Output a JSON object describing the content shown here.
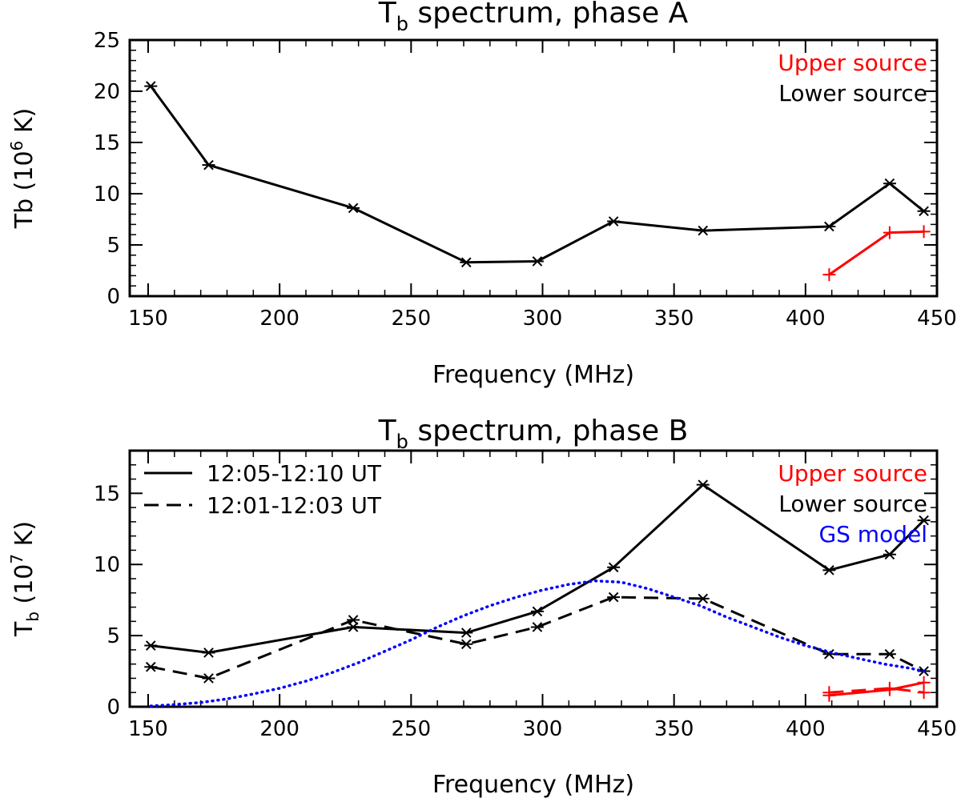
{
  "chart_data": [
    {
      "type": "line",
      "title_main": "T",
      "title_sub": "b",
      "title_rest": " spectrum, phase A",
      "xlabel": "Frequency (MHz)",
      "ylabel_pre": "Tb (10",
      "ylabel_sup": "6",
      "ylabel_post": " K)",
      "xlim": [
        143,
        450
      ],
      "ylim": [
        0,
        25
      ],
      "xticks": [
        150,
        200,
        250,
        300,
        350,
        400,
        450
      ],
      "yticks": [
        0,
        5,
        10,
        15,
        20,
        25
      ],
      "legend": [
        {
          "label": "Upper source",
          "color": "#ff0000"
        },
        {
          "label": "Lower source",
          "color": "#000000"
        }
      ],
      "series": [
        {
          "name": "Lower source",
          "color": "#000000",
          "marker": "asterisk",
          "dash": "solid",
          "x": [
            151,
            173,
            228,
            271,
            298,
            327,
            361,
            409,
            432,
            445
          ],
          "y": [
            20.5,
            12.8,
            8.6,
            3.3,
            3.4,
            7.3,
            6.4,
            6.8,
            11.0,
            8.3
          ]
        },
        {
          "name": "Upper source",
          "color": "#ff0000",
          "marker": "plus",
          "dash": "solid",
          "x": [
            409,
            432,
            445
          ],
          "y": [
            2.1,
            6.2,
            6.3
          ]
        }
      ]
    },
    {
      "type": "line",
      "title_main": "T",
      "title_sub": "b",
      "title_rest": " spectrum, phase B",
      "xlabel": "Frequency (MHz)",
      "ylabel_pre": "T",
      "ylabel_sub": "b",
      "ylabel_mid": " (10",
      "ylabel_sup": "7",
      "ylabel_post": " K)",
      "xlim": [
        143,
        450
      ],
      "ylim": [
        0,
        18
      ],
      "xticks": [
        150,
        200,
        250,
        300,
        350,
        400,
        450
      ],
      "yticks": [
        0,
        5,
        10,
        15
      ],
      "legend": [
        {
          "label": "Upper source",
          "color": "#ff0000"
        },
        {
          "label": "Lower source",
          "color": "#000000"
        },
        {
          "label": "GS model",
          "color": "#0000ff"
        }
      ],
      "line_legend": [
        {
          "label": "12:05-12:10 UT",
          "dash": "solid"
        },
        {
          "label": "12:01-12:03 UT",
          "dash": "dashed"
        }
      ],
      "series": [
        {
          "name": "Lower source 12:05-12:10 UT",
          "color": "#000000",
          "marker": "asterisk",
          "dash": "solid",
          "x": [
            151,
            173,
            228,
            271,
            298,
            327,
            361,
            409,
            432,
            445
          ],
          "y": [
            4.3,
            3.8,
            5.6,
            5.2,
            6.7,
            9.8,
            15.6,
            9.6,
            10.7,
            13.1
          ]
        },
        {
          "name": "Lower source 12:01-12:03 UT",
          "color": "#000000",
          "marker": "asterisk",
          "dash": "dashed",
          "x": [
            151,
            173,
            228,
            271,
            298,
            327,
            361,
            409,
            432,
            445
          ],
          "y": [
            2.8,
            2.0,
            6.1,
            4.4,
            5.6,
            7.7,
            7.6,
            3.7,
            3.7,
            2.5
          ]
        },
        {
          "name": "Upper source 12:05-12:10 UT",
          "color": "#ff0000",
          "marker": "plus",
          "dash": "solid",
          "x": [
            409,
            432,
            445
          ],
          "y": [
            0.8,
            1.2,
            1.7
          ]
        },
        {
          "name": "Upper source 12:01-12:03 UT",
          "color": "#ff0000",
          "marker": "plus",
          "dash": "dashed",
          "x": [
            409,
            432,
            445
          ],
          "y": [
            1.0,
            1.3,
            1.0
          ]
        },
        {
          "name": "GS model",
          "color": "#0000ff",
          "marker": "none",
          "dash": "dotted",
          "x": [
            151,
            160,
            170,
            180,
            190,
            200,
            210,
            220,
            230,
            240,
            250,
            260,
            270,
            280,
            290,
            300,
            310,
            320,
            330,
            340,
            350,
            360,
            370,
            380,
            390,
            400,
            410,
            420,
            430,
            440,
            445
          ],
          "y": [
            0.05,
            0.15,
            0.3,
            0.55,
            0.9,
            1.3,
            1.8,
            2.4,
            3.1,
            3.9,
            4.7,
            5.6,
            6.4,
            7.1,
            7.7,
            8.2,
            8.6,
            8.85,
            8.75,
            8.3,
            7.7,
            7.1,
            6.3,
            5.6,
            4.9,
            4.3,
            3.8,
            3.4,
            3.0,
            2.7,
            2.5
          ]
        }
      ]
    }
  ]
}
